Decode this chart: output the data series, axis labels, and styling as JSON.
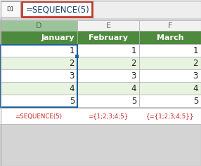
{
  "formula_bar_text": "=SEQUENCE(5)",
  "col_headers": [
    "D",
    "E",
    "F"
  ],
  "month_headers": [
    "January",
    "February",
    "March"
  ],
  "values": [
    1,
    2,
    3,
    4,
    5
  ],
  "bottom_labels": [
    "=SEQUENCE(5)",
    "={1;2;3;4;5}",
    "{={1;2;3;4;5}}"
  ],
  "header_bg": "#4e8a3e",
  "header_text": "#ffffff",
  "col_d_letter_bg": "#9bc49a",
  "col_ef_letter_bg": "#f2f2f2",
  "col_letter_text_d": "#4a7040",
  "col_letter_text_ef": "#666666",
  "cell_bg_odd": "#ffffff",
  "cell_bg_even": "#e8f4e0",
  "selected_border": "#2060a0",
  "fill_handle": "#2060a0",
  "formula_box_border": "#c0392b",
  "formula_box_bg": "#ffffff",
  "formula_text_color": "#1a3a6a",
  "outer_bg": "#d4d4d4",
  "grid_color": "#b0b0b0",
  "bottom_bg": "#ffffff",
  "bottom_text_color": "#cc2222",
  "fig_w": 2.86,
  "fig_h": 2.37,
  "dpi": 100
}
